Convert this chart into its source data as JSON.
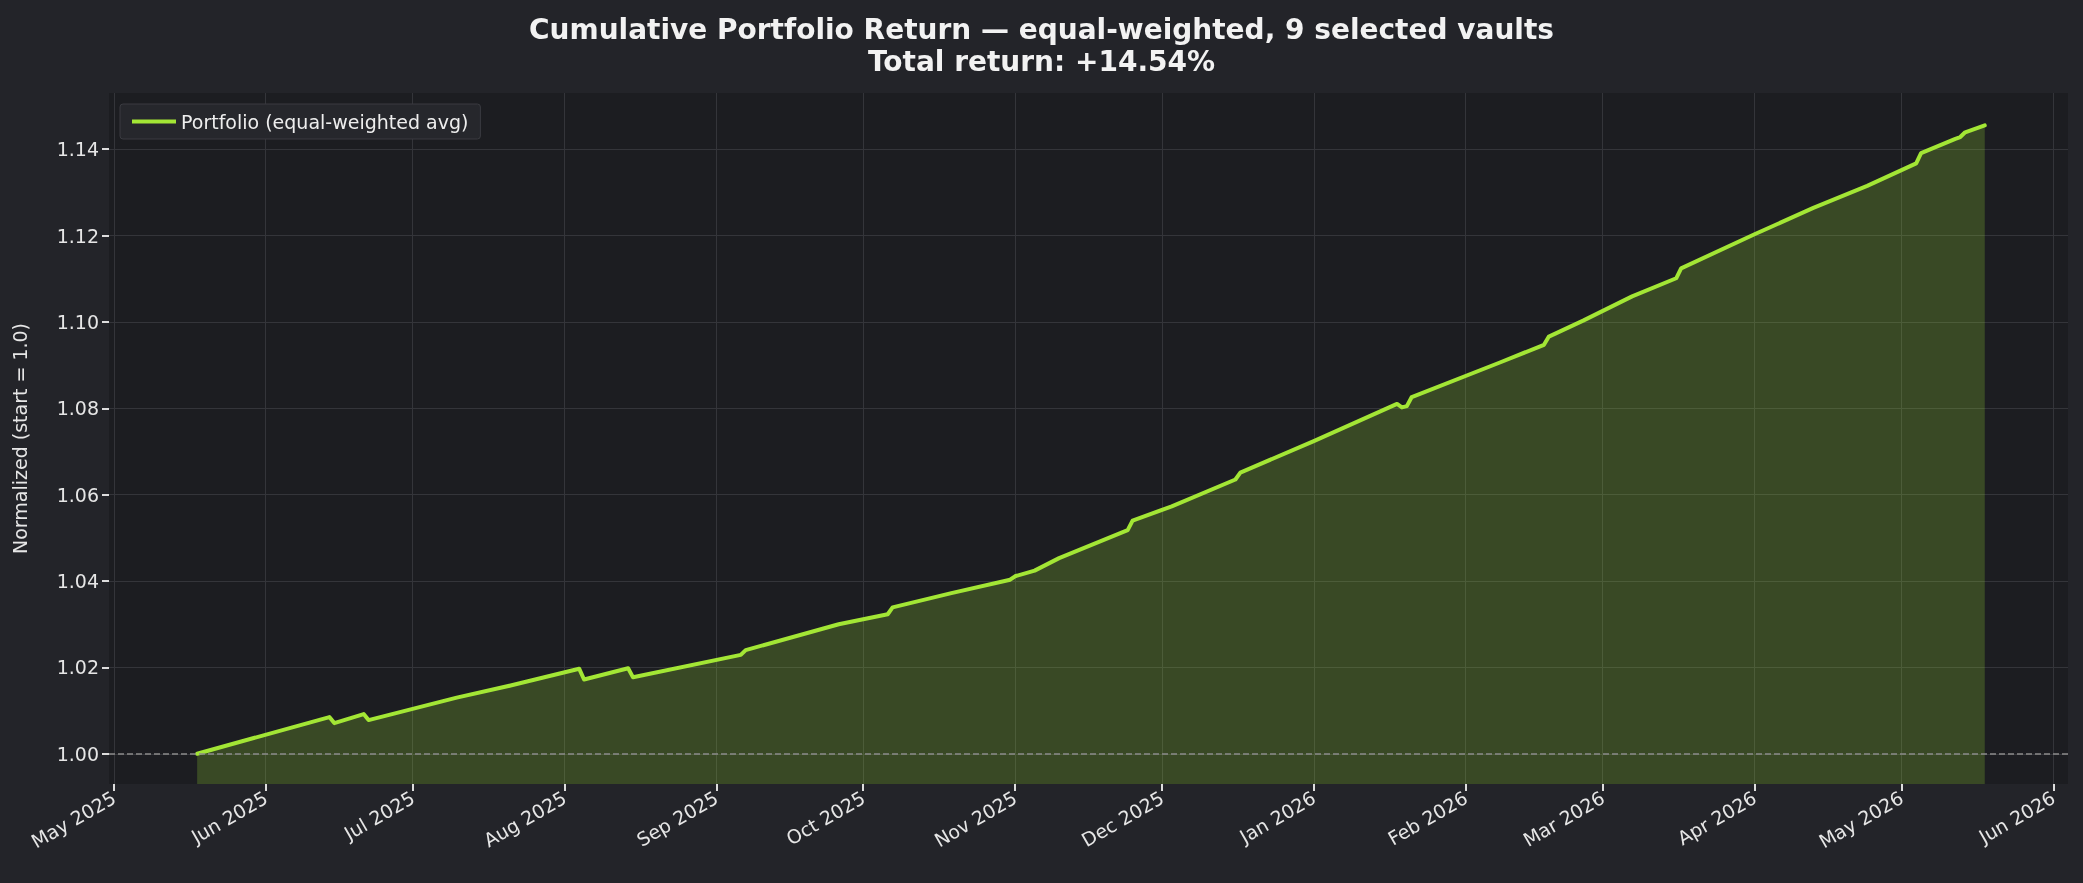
{
  "chart_data": {
    "type": "area",
    "title": "Cumulative Portfolio Return — equal-weighted, 9 selected vaults",
    "subtitle": "Total return: +14.54%",
    "ylabel": "Normalized (start = 1.0)",
    "x": [
      "2025-05-18",
      "2025-06-14",
      "2025-06-15",
      "2025-06-21",
      "2025-06-22",
      "2025-07-10",
      "2025-07-21",
      "2025-08-04",
      "2025-08-05",
      "2025-08-14",
      "2025-08-15",
      "2025-09-06",
      "2025-09-07",
      "2025-09-26",
      "2025-10-06",
      "2025-10-07",
      "2025-10-19",
      "2025-10-31",
      "2025-11-01",
      "2025-11-05",
      "2025-11-10",
      "2025-11-24",
      "2025-11-25",
      "2025-12-03",
      "2025-12-16",
      "2025-12-17",
      "2026-01-01",
      "2026-01-18",
      "2026-01-19",
      "2026-01-20",
      "2026-01-21",
      "2026-02-08",
      "2026-02-17",
      "2026-02-18",
      "2026-02-25",
      "2026-03-07",
      "2026-03-16",
      "2026-03-17",
      "2026-04-01",
      "2026-04-13",
      "2026-04-24",
      "2026-05-04",
      "2026-05-05",
      "2026-05-12",
      "2026-05-13",
      "2026-05-14",
      "2026-05-18"
    ],
    "series": [
      {
        "name": "Portfolio (equal-weighted avg)",
        "color": "#a3e635",
        "values": [
          1.0,
          1.0085,
          1.0071,
          1.0092,
          1.0078,
          1.013,
          1.0158,
          1.0197,
          1.0172,
          1.0198,
          1.0177,
          1.0229,
          1.024,
          1.03,
          1.0323,
          1.0339,
          1.0372,
          1.0403,
          1.0411,
          1.0424,
          1.0453,
          1.0518,
          1.054,
          1.0573,
          1.0635,
          1.0651,
          1.0724,
          1.081,
          1.0802,
          1.0805,
          1.0826,
          1.0906,
          1.0947,
          1.0966,
          1.1003,
          1.1059,
          1.1101,
          1.1124,
          1.1203,
          1.1264,
          1.1315,
          1.1367,
          1.1391,
          1.1424,
          1.1428,
          1.1439,
          1.1455
        ]
      }
    ],
    "xlim": [
      "2025-04-30",
      "2026-06-04"
    ],
    "xticks": [
      {
        "value": "2025-05-01",
        "label": "May 2025"
      },
      {
        "value": "2025-06-01",
        "label": "Jun 2025"
      },
      {
        "value": "2025-07-01",
        "label": "Jul 2025"
      },
      {
        "value": "2025-08-01",
        "label": "Aug 2025"
      },
      {
        "value": "2025-09-01",
        "label": "Sep 2025"
      },
      {
        "value": "2025-10-01",
        "label": "Oct 2025"
      },
      {
        "value": "2025-11-01",
        "label": "Nov 2025"
      },
      {
        "value": "2025-12-01",
        "label": "Dec 2025"
      },
      {
        "value": "2026-01-01",
        "label": "Jan 2026"
      },
      {
        "value": "2026-02-01",
        "label": "Feb 2026"
      },
      {
        "value": "2026-03-01",
        "label": "Mar 2026"
      },
      {
        "value": "2026-04-01",
        "label": "Apr 2026"
      },
      {
        "value": "2026-05-01",
        "label": "May 2026"
      },
      {
        "value": "2026-06-01",
        "label": "Jun 2026"
      }
    ],
    "ylim": [
      0.993,
      1.153
    ],
    "yticks": [
      {
        "value": 1.0,
        "label": "1.00"
      },
      {
        "value": 1.02,
        "label": "1.02"
      },
      {
        "value": 1.04,
        "label": "1.04"
      },
      {
        "value": 1.06,
        "label": "1.06"
      },
      {
        "value": 1.08,
        "label": "1.08"
      },
      {
        "value": 1.1,
        "label": "1.10"
      },
      {
        "value": 1.12,
        "label": "1.12"
      },
      {
        "value": 1.14,
        "label": "1.14"
      }
    ],
    "ref_lines": [
      {
        "axis": "y",
        "value": 1.0,
        "color": "#8a8a8a",
        "line_style": "dashed"
      }
    ],
    "grid": true,
    "legend": "top left"
  }
}
